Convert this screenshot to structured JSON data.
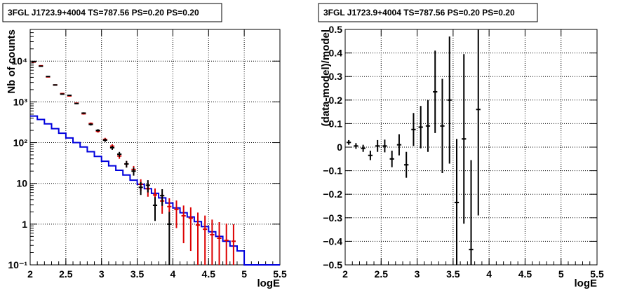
{
  "chart_data": [
    {
      "type": "line",
      "title": "3FGL J1723.9+4004 TS=787.56 PS=0.20 PS=0.20",
      "xlabel": "logE",
      "ylabel": "Nb of counts",
      "xlim": [
        2,
        5.5
      ],
      "ylim": [
        0.1,
        60000
      ],
      "yscale": "log",
      "grid": true,
      "x_ticks": [
        "2",
        "2.5",
        "3",
        "3.5",
        "4",
        "4.5",
        "5",
        "5.5"
      ],
      "y_ticks": [
        "10⁻¹",
        "1",
        "10",
        "10²",
        "10³",
        "10⁴"
      ],
      "bin_edges": [
        2.0,
        2.1,
        2.2,
        2.3,
        2.4,
        2.5,
        2.6,
        2.7,
        2.8,
        2.9,
        3.0,
        3.1,
        3.2,
        3.3,
        3.4,
        3.5,
        3.6,
        3.7,
        3.8,
        3.9,
        4.0,
        4.1,
        4.2,
        4.3,
        4.4,
        4.5,
        4.6,
        4.7,
        4.8,
        4.9,
        5.0,
        5.1,
        5.2,
        5.3,
        5.4,
        5.5
      ],
      "series": [
        {
          "color": "#0000dd",
          "style": "step",
          "values": [
            450,
            370,
            290,
            220,
            170,
            130,
            100,
            78,
            60,
            46,
            35,
            27,
            21,
            16,
            12,
            9.5,
            7.4,
            5.7,
            4.4,
            3.3,
            2.5,
            1.9,
            1.5,
            1.15,
            0.87,
            0.65,
            0.5,
            0.38,
            0.29,
            0.22,
            0.1,
            0.1,
            0.1,
            0.1,
            0.1
          ]
        },
        {
          "color": "#dd0000",
          "style": "errorbar",
          "x": [
            2.05,
            2.15,
            2.25,
            2.35,
            2.45,
            2.55,
            2.65,
            2.75,
            2.85,
            2.95,
            3.05,
            3.15,
            3.25,
            3.35,
            3.45,
            3.55,
            3.65,
            3.75,
            3.85,
            3.95,
            4.05,
            4.15,
            4.25,
            4.35,
            4.45,
            4.55,
            4.65,
            4.75,
            4.85
          ],
          "y": [
            9500,
            7700,
            4100,
            2600,
            1600,
            1400,
            930,
            510,
            295,
            190,
            120,
            82,
            47,
            30,
            22,
            9.5,
            7.4,
            5.2,
            3.7,
            2.7,
            2.3,
            1.6,
            1.4,
            0.95,
            0.75,
            0.55,
            0.45,
            0.4,
            0.38
          ],
          "yerr": [
            95,
            88,
            64,
            51,
            40,
            37,
            30,
            22,
            17,
            14,
            11,
            9,
            6.9,
            5.5,
            4.7,
            3.1,
            2.7,
            2.3,
            1.9,
            1.6,
            1.5,
            1.26,
            1.18,
            0.97,
            0.87,
            0.74,
            0.67,
            0.63,
            0.61
          ]
        },
        {
          "color": "#000000",
          "style": "errorbar",
          "x": [
            2.05,
            2.15,
            2.25,
            2.35,
            2.45,
            2.55,
            2.65,
            2.75,
            2.85,
            2.95,
            3.05,
            3.15,
            3.25,
            3.35,
            3.45,
            3.55,
            3.65,
            3.75,
            3.85,
            3.95
          ],
          "y": [
            9700,
            7500,
            4200,
            2600,
            1550,
            1450,
            910,
            530,
            280,
            200,
            115,
            75,
            52,
            30,
            20,
            8,
            9,
            2.9,
            5,
            1
          ],
          "yerr": [
            98,
            87,
            65,
            51,
            39,
            38,
            30,
            23,
            17,
            14,
            10.7,
            8.7,
            7.2,
            5.5,
            4.5,
            2.8,
            3,
            1.7,
            2.2,
            1
          ]
        }
      ]
    },
    {
      "type": "scatter",
      "title": "3FGL J1723.9+4004 TS=787.56 PS=0.20 PS=0.20",
      "xlabel": "logE",
      "ylabel": "(data-model)/model",
      "xlim": [
        2,
        5.5
      ],
      "ylim": [
        -0.5,
        0.5
      ],
      "grid": true,
      "x_ticks": [
        "2",
        "2.5",
        "3",
        "3.5",
        "4",
        "4.5",
        "5",
        "5.5"
      ],
      "y_ticks": [
        "−0.5",
        "−0.4",
        "−0.3",
        "−0.2",
        "−0.1",
        "0",
        "0.1",
        "0.2",
        "0.3",
        "0.4",
        "0.5"
      ],
      "series": [
        {
          "color": "#000000",
          "x": [
            2.05,
            2.15,
            2.25,
            2.35,
            2.45,
            2.55,
            2.65,
            2.75,
            2.85,
            2.95,
            3.05,
            3.15,
            3.25,
            3.35,
            3.45,
            3.55,
            3.65,
            3.75,
            3.85
          ],
          "y": [
            0.02,
            0.005,
            -0.005,
            -0.035,
            0.005,
            0.005,
            -0.05,
            0.01,
            -0.075,
            0.075,
            0.085,
            0.09,
            0.235,
            0.09,
            0.2,
            -0.235,
            0.035,
            -0.435,
            0.16
          ],
          "yerr": [
            0.01,
            0.012,
            0.015,
            0.02,
            0.025,
            0.027,
            0.035,
            0.045,
            0.055,
            0.07,
            0.09,
            0.11,
            0.175,
            0.2,
            0.27,
            0.27,
            0.36,
            0.38,
            0.45
          ]
        }
      ]
    }
  ]
}
